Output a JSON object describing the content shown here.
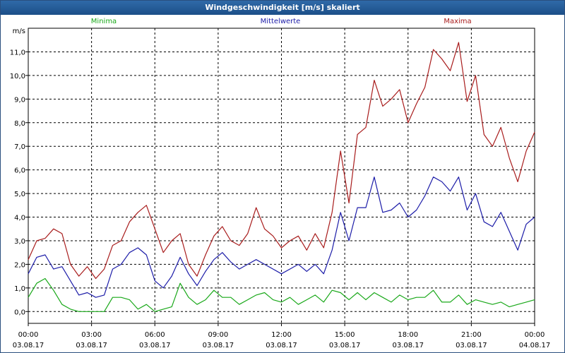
{
  "window": {
    "title": "Windgeschwindigkeit [m/s] skaliert"
  },
  "legend": {
    "minima": "Minima",
    "mittel": "Mittelwerte",
    "maxima": "Maxima"
  },
  "colors": {
    "minima": "#19a819",
    "mittel": "#1c1ca8",
    "maxima": "#a81c1c",
    "grid": "#000000"
  },
  "chart_data": {
    "type": "line",
    "title": "Windgeschwindigkeit [m/s] skaliert",
    "ylabel": "m/s",
    "xlabel": "",
    "ylim": [
      -0.5,
      12.0
    ],
    "yticks": [
      "0,0",
      "1,0",
      "2,0",
      "3,0",
      "4,0",
      "5,0",
      "6,0",
      "7,0",
      "8,0",
      "9,0",
      "10,0",
      "11,0"
    ],
    "ytick_values": [
      0,
      1,
      2,
      3,
      4,
      5,
      6,
      7,
      8,
      9,
      10,
      11
    ],
    "xlim_hours": [
      0,
      24
    ],
    "xticks": [
      {
        "time": "00:00",
        "date": "03.08.17"
      },
      {
        "time": "03:00",
        "date": "03.08.17"
      },
      {
        "time": "06:00",
        "date": "03.08.17"
      },
      {
        "time": "09:00",
        "date": "03.08.17"
      },
      {
        "time": "12:00",
        "date": "03.08.17"
      },
      {
        "time": "15:00",
        "date": "03.08.17"
      },
      {
        "time": "18:00",
        "date": "03.08.17"
      },
      {
        "time": "21:00",
        "date": "03.08.17"
      },
      {
        "time": "00:00",
        "date": "04.08.17"
      }
    ],
    "x_hours": [
      0.0,
      0.4,
      0.8,
      1.2,
      1.6,
      2.0,
      2.4,
      2.8,
      3.2,
      3.6,
      4.0,
      4.4,
      4.8,
      5.2,
      5.6,
      6.0,
      6.4,
      6.8,
      7.2,
      7.6,
      8.0,
      8.4,
      8.8,
      9.2,
      9.6,
      10.0,
      10.4,
      10.8,
      11.2,
      11.6,
      12.0,
      12.4,
      12.8,
      13.2,
      13.6,
      14.0,
      14.4,
      14.8,
      15.2,
      15.6,
      16.0,
      16.4,
      16.8,
      17.2,
      17.6,
      18.0,
      18.4,
      18.8,
      19.2,
      19.6,
      20.0,
      20.4,
      20.8,
      21.2,
      21.6,
      22.0,
      22.4,
      22.8,
      23.2,
      23.6,
      24.0
    ],
    "series": [
      {
        "name": "Maxima",
        "values": [
          2.2,
          3.0,
          3.1,
          3.5,
          3.3,
          2.0,
          1.5,
          1.9,
          1.4,
          1.8,
          2.8,
          3.0,
          3.8,
          4.2,
          4.5,
          3.5,
          2.5,
          3.0,
          3.3,
          2.0,
          1.5,
          2.4,
          3.2,
          3.6,
          3.0,
          2.8,
          3.3,
          4.4,
          3.5,
          3.2,
          2.7,
          3.0,
          3.2,
          2.6,
          3.3,
          2.7,
          4.2,
          6.8,
          4.6,
          7.5,
          7.8,
          9.8,
          8.7,
          9.0,
          9.4,
          8.0,
          8.8,
          9.5,
          11.1,
          10.7,
          10.2,
          11.4,
          8.9,
          10.0,
          7.5,
          7.0,
          7.8,
          6.5,
          5.5,
          6.8,
          7.6
        ]
      },
      {
        "name": "Mittelwerte",
        "values": [
          1.6,
          2.3,
          2.4,
          1.8,
          1.9,
          1.3,
          0.7,
          0.8,
          0.6,
          0.7,
          1.8,
          2.0,
          2.5,
          2.7,
          2.4,
          1.3,
          1.0,
          1.5,
          2.3,
          1.6,
          1.1,
          1.7,
          2.2,
          2.5,
          2.1,
          1.8,
          2.0,
          2.2,
          2.0,
          1.8,
          1.6,
          1.8,
          2.0,
          1.7,
          2.0,
          1.6,
          2.6,
          4.2,
          3.0,
          4.4,
          4.4,
          5.7,
          4.2,
          4.3,
          4.6,
          4.0,
          4.3,
          4.9,
          5.7,
          5.5,
          5.1,
          5.7,
          4.3,
          5.0,
          3.8,
          3.6,
          4.2,
          3.4,
          2.6,
          3.7,
          4.0
        ]
      },
      {
        "name": "Minima",
        "values": [
          0.6,
          1.2,
          1.4,
          0.9,
          0.3,
          0.1,
          0.0,
          0.0,
          0.0,
          0.0,
          0.6,
          0.6,
          0.5,
          0.1,
          0.3,
          0.0,
          0.1,
          0.2,
          1.2,
          0.6,
          0.3,
          0.5,
          0.9,
          0.6,
          0.6,
          0.3,
          0.5,
          0.7,
          0.8,
          0.5,
          0.4,
          0.6,
          0.3,
          0.5,
          0.7,
          0.4,
          0.9,
          0.8,
          0.5,
          0.8,
          0.5,
          0.8,
          0.6,
          0.4,
          0.7,
          0.5,
          0.6,
          0.6,
          0.9,
          0.4,
          0.4,
          0.7,
          0.3,
          0.5,
          0.4,
          0.3,
          0.4,
          0.2,
          0.3,
          0.4,
          0.5
        ]
      }
    ],
    "grid": true
  }
}
